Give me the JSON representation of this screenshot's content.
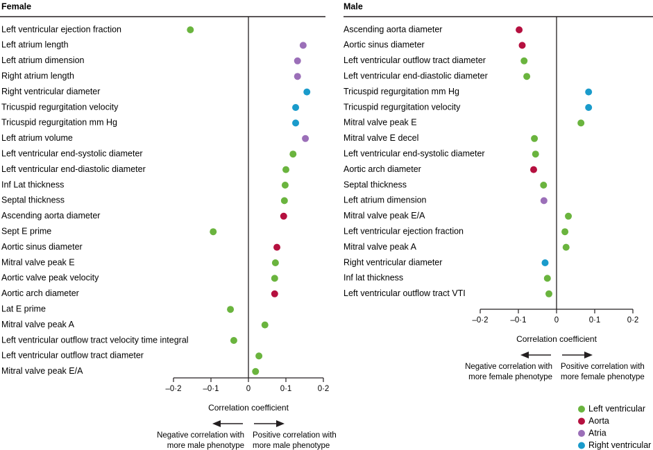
{
  "legend": [
    {
      "name": "Left ventricular",
      "color": "#6ab43e"
    },
    {
      "name": "Aorta",
      "color": "#b5103f"
    },
    {
      "name": "Atria",
      "color": "#9b6fb8"
    },
    {
      "name": "Right ventricular",
      "color": "#1a9bcb"
    }
  ],
  "chart_data": [
    {
      "type": "scatter",
      "title": "Female",
      "xlabel": "Correlation coefficient",
      "xlim": [
        -0.2,
        0.2
      ],
      "xticks": [
        -0.2,
        -0.1,
        0,
        0.1,
        0.2
      ],
      "xtick_labels": [
        "–0·2",
        "–0·1",
        "0",
        "0·1",
        "0·2"
      ],
      "neg_note": [
        "Negative correlation with",
        "more male phenotype"
      ],
      "pos_note": [
        "Positive correlation with",
        "more male phenotype"
      ],
      "points": [
        {
          "label": "Left ventricular ejection fraction",
          "value": -0.155,
          "group": "Left ventricular"
        },
        {
          "label": "Left atrium length",
          "value": 0.146,
          "group": "Atria"
        },
        {
          "label": "Left atrium dimension",
          "value": 0.131,
          "group": "Atria"
        },
        {
          "label": "Right atrium length",
          "value": 0.131,
          "group": "Atria"
        },
        {
          "label": "Right ventricular diameter",
          "value": 0.156,
          "group": "Right ventricular"
        },
        {
          "label": "Tricuspid regurgitation velocity",
          "value": 0.126,
          "group": "Right ventricular"
        },
        {
          "label": "Tricuspid regurgitation mm Hg",
          "value": 0.126,
          "group": "Right ventricular"
        },
        {
          "label": "Left atrium volume",
          "value": 0.152,
          "group": "Atria"
        },
        {
          "label": "Left ventricular end-systolic diameter",
          "value": 0.119,
          "group": "Left ventricular"
        },
        {
          "label": "Left ventricular end-diastolic diameter",
          "value": 0.1,
          "group": "Left ventricular"
        },
        {
          "label": "Inf Lat thickness",
          "value": 0.098,
          "group": "Left ventricular"
        },
        {
          "label": "Septal thickness",
          "value": 0.096,
          "group": "Left ventricular"
        },
        {
          "label": "Ascending aorta diameter",
          "value": 0.094,
          "group": "Aorta"
        },
        {
          "label": "Sept E prime",
          "value": -0.094,
          "group": "Left ventricular"
        },
        {
          "label": "Aortic sinus diameter",
          "value": 0.076,
          "group": "Aorta"
        },
        {
          "label": "Mitral valve peak E",
          "value": 0.072,
          "group": "Left ventricular"
        },
        {
          "label": "Aortic valve peak velocity",
          "value": 0.07,
          "group": "Left ventricular"
        },
        {
          "label": "Aortic arch diameter",
          "value": 0.07,
          "group": "Aorta"
        },
        {
          "label": "Lat E prime",
          "value": -0.048,
          "group": "Left ventricular"
        },
        {
          "label": "Mitral valve peak A",
          "value": 0.044,
          "group": "Left ventricular"
        },
        {
          "label": "Left ventricular outflow tract velocity time integral",
          "value": -0.039,
          "group": "Left ventricular"
        },
        {
          "label": "Left ventricular outflow tract diameter",
          "value": 0.028,
          "group": "Left ventricular"
        },
        {
          "label": "Mitral valve peak E/A",
          "value": 0.019,
          "group": "Left ventricular"
        }
      ]
    },
    {
      "type": "scatter",
      "title": "Male",
      "xlabel": "Correlation coefficient",
      "xlim": [
        -0.2,
        0.2
      ],
      "xticks": [
        -0.2,
        -0.1,
        0,
        0.1,
        0.2
      ],
      "xtick_labels": [
        "–0·2",
        "–0·1",
        "0",
        "0·1",
        "0·2"
      ],
      "neg_note": [
        "Negative correlation with",
        "more female phenotype"
      ],
      "pos_note": [
        "Positive correlation with",
        "more female phenotype"
      ],
      "points": [
        {
          "label": "Ascending aorta diameter",
          "value": -0.098,
          "group": "Aorta"
        },
        {
          "label": "Aortic sinus diameter",
          "value": -0.09,
          "group": "Aorta"
        },
        {
          "label": "Left ventricular outflow tract diameter",
          "value": -0.085,
          "group": "Left ventricular"
        },
        {
          "label": "Left ventricular end-diastolic diameter",
          "value": -0.078,
          "group": "Left ventricular"
        },
        {
          "label": "Tricuspid regurgitation mm Hg",
          "value": 0.084,
          "group": "Right ventricular"
        },
        {
          "label": "Tricuspid regurgitation velocity",
          "value": 0.084,
          "group": "Right ventricular"
        },
        {
          "label": "Mitral valve peak E",
          "value": 0.064,
          "group": "Left ventricular"
        },
        {
          "label": "Mitral valve E decel",
          "value": -0.058,
          "group": "Left ventricular"
        },
        {
          "label": "Left ventricular end-systolic diameter",
          "value": -0.055,
          "group": "Left ventricular"
        },
        {
          "label": "Aortic arch diameter",
          "value": -0.06,
          "group": "Aorta"
        },
        {
          "label": "Septal thickness",
          "value": -0.034,
          "group": "Left ventricular"
        },
        {
          "label": "Left atrium dimension",
          "value": -0.033,
          "group": "Atria"
        },
        {
          "label": "Mitral valve peak E/A",
          "value": 0.031,
          "group": "Left ventricular"
        },
        {
          "label": "Left ventricular ejection fraction",
          "value": 0.022,
          "group": "Left ventricular"
        },
        {
          "label": "Mitral valve peak A",
          "value": 0.025,
          "group": "Left ventricular"
        },
        {
          "label": "Right ventricular diameter",
          "value": -0.03,
          "group": "Right ventricular"
        },
        {
          "label": "Inf lat thickness",
          "value": -0.024,
          "group": "Left ventricular"
        },
        {
          "label": "Left ventricular outflow tract VTI",
          "value": -0.02,
          "group": "Left ventricular"
        }
      ]
    }
  ]
}
